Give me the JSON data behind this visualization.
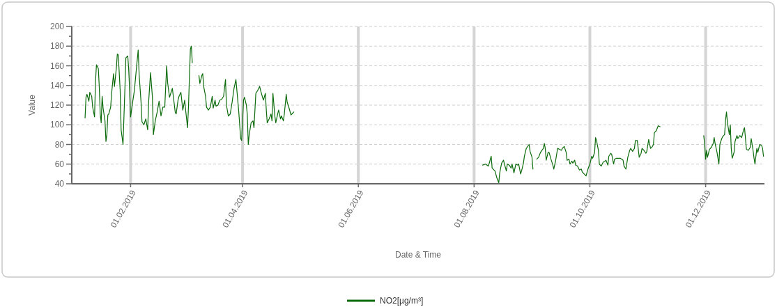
{
  "chart_data": {
    "type": "line",
    "xlabel": "Date & Time",
    "ylabel": "Value",
    "xlim": [
      "2019-01-01",
      "2020-01-01"
    ],
    "xticks": [
      {
        "value": "2019-02-01",
        "label": "01.02.2019"
      },
      {
        "value": "2019-04-01",
        "label": "01.04.2019"
      },
      {
        "value": "2019-06-01",
        "label": "01.06.2019"
      },
      {
        "value": "2019-08-01",
        "label": "01.08.2019"
      },
      {
        "value": "2019-10-01",
        "label": "01.10.2019"
      },
      {
        "value": "2019-12-01",
        "label": "01.12.2019"
      }
    ],
    "ylim": [
      40,
      200
    ],
    "yticks": [
      40,
      {
        "value": 50,
        "label": null
      },
      60,
      {
        "value": 70,
        "label": null
      },
      80,
      {
        "value": 90,
        "label": null
      },
      100,
      {
        "value": 110,
        "label": null
      },
      120,
      {
        "value": 130,
        "label": null
      },
      140,
      {
        "value": 150,
        "label": null
      },
      160,
      {
        "value": 170,
        "label": null
      },
      180,
      {
        "value": 190,
        "label": null
      },
      200
    ],
    "grid": true,
    "legend": "bottom",
    "marker": "none",
    "line_style": "solid",
    "x": [
      "2019-01-08",
      "2019-01-08T12:00",
      "2019-01-09",
      "2019-01-10",
      "2019-01-10T12:00",
      "2019-01-11T12:00",
      "2019-01-12",
      "2019-01-13",
      "2019-01-13T12:00",
      "2019-01-14",
      "2019-01-15",
      "2019-01-15T12:00",
      "2019-01-16",
      "2019-01-16T12:00",
      "2019-01-17",
      "2019-01-17T12:00",
      "2019-01-18T12:00",
      "2019-01-19",
      "2019-01-19T12:00",
      "2019-01-20",
      "2019-01-20T12:00",
      "2019-01-21T12:00",
      "2019-01-22",
      "2019-01-23",
      "2019-01-23T12:00",
      "2019-01-24T12:00",
      "2019-01-25",
      "2019-01-25T12:00",
      "2019-01-26T12:00",
      "2019-01-27",
      "2019-01-28",
      "2019-01-29",
      "2019-01-29T12:00",
      "2019-01-30T12:00",
      "2019-01-31",
      "2019-01-31T12:00",
      "2019-02-01",
      "2019-02-02",
      "2019-02-03",
      "2019-02-04",
      "2019-02-05",
      "2019-02-05T12:00",
      "2019-02-06T12:00",
      "2019-02-07",
      "2019-02-08",
      "2019-02-09",
      "2019-02-10",
      "2019-02-10T12:00",
      "2019-02-11T12:00",
      "2019-02-12T12:00",
      "2019-02-13",
      "2019-02-14",
      "2019-02-15",
      "2019-02-16",
      "2019-02-17",
      "2019-02-18",
      "2019-02-19",
      "2019-02-20",
      "2019-02-20T12:00",
      "2019-02-21T12:00",
      "2019-02-22",
      "2019-02-23",
      "2019-02-23T12:00",
      "2019-02-24T12:00",
      "2019-02-25",
      "2019-02-26",
      "2019-02-26T12:00",
      "2019-02-27T12:00",
      "2019-02-28T12:00",
      "2019-03-01T12:00",
      "2019-03-02",
      "2019-03-03",
      "2019-03-03T12:00",
      "2019-03-04",
      "2019-03-04T12:00",
      "2019-03-05",
      "2019-03-05T12:00",
      "2019-03-07",
      "2019-03-09",
      "2019-03-09T12:00",
      "2019-03-10T12:00",
      "2019-03-11",
      "2019-03-11T12:00",
      "2019-03-12T12:00",
      "2019-03-13",
      "2019-03-14",
      "2019-03-15",
      "2019-03-16",
      "2019-03-16T12:00",
      "2019-03-17T12:00",
      "2019-03-18",
      "2019-03-19",
      "2019-03-20",
      "2019-03-21",
      "2019-03-22",
      "2019-03-23",
      "2019-03-23T12:00",
      "2019-03-24T12:00",
      "2019-03-25T12:00",
      "2019-03-26T12:00",
      "2019-03-27T12:00",
      "2019-03-28T12:00",
      "2019-03-29",
      "2019-03-30",
      "2019-03-31",
      "2019-03-31T12:00",
      "2019-04-01T12:00",
      "2019-04-02",
      "2019-04-03",
      "2019-04-03T12:00",
      "2019-04-04",
      "2019-04-04T12:00",
      "2019-04-05T12:00",
      "2019-04-06T12:00",
      "2019-04-07",
      "2019-04-08",
      "2019-04-09",
      "2019-04-10",
      "2019-04-10T12:00",
      "2019-04-11T12:00",
      "2019-04-12",
      "2019-04-13",
      "2019-04-13T12:00",
      "2019-04-14",
      "2019-04-15",
      "2019-04-16",
      "2019-04-16T12:00",
      "2019-04-17",
      "2019-04-18",
      "2019-04-18T12:00",
      "2019-04-19T12:00",
      "2019-04-20",
      "2019-04-21",
      "2019-04-21T12:00",
      "2019-04-22T12:00",
      "2019-04-23",
      "2019-04-24",
      "2019-04-24T12:00",
      "2019-04-25T12:00",
      "2019-04-26T12:00",
      "2019-04-27",
      "2019-04-28",
      "2019-06-01",
      "2019-08-05T12:00",
      "2019-08-07",
      "2019-08-08T12:00",
      "2019-08-09",
      "2019-08-10",
      "2019-08-10T12:00",
      "2019-08-12",
      "2019-08-13",
      "2019-08-14",
      "2019-08-14T12:00",
      "2019-08-15T12:00",
      "2019-08-16T12:00",
      "2019-08-17",
      "2019-08-18",
      "2019-08-18T12:00",
      "2019-08-19T12:00",
      "2019-08-20T12:00",
      "2019-08-21",
      "2019-08-22",
      "2019-08-23",
      "2019-08-24",
      "2019-08-24T12:00",
      "2019-08-25T12:00",
      "2019-08-26",
      "2019-08-27",
      "2019-08-27T12:00",
      "2019-08-28T12:00",
      "2019-08-30",
      "2019-08-30T12:00",
      "2019-08-31T12:00",
      "2019-09-01",
      "2019-09-02",
      "2019-09-03",
      "2019-09-04",
      "2019-09-05",
      "2019-09-06T12:00",
      "2019-09-07",
      "2019-09-07T12:00",
      "2019-09-08",
      "2019-09-09",
      "2019-09-09T12:00",
      "2019-09-10T12:00",
      "2019-09-11T12:00",
      "2019-09-12",
      "2019-09-13",
      "2019-09-14",
      "2019-09-15",
      "2019-09-16",
      "2019-09-16T12:00",
      "2019-09-17T12:00",
      "2019-09-18T12:00",
      "2019-09-19",
      "2019-09-20",
      "2019-09-20T12:00",
      "2019-09-21T12:00",
      "2019-09-22",
      "2019-09-23",
      "2019-09-23T12:00",
      "2019-09-24T12:00",
      "2019-09-25T12:00",
      "2019-09-26T12:00",
      "2019-09-27",
      "2019-09-28",
      "2019-09-29",
      "2019-09-30",
      "2019-10-01",
      "2019-10-02",
      "2019-10-02T12:00",
      "2019-10-03T12:00",
      "2019-10-04",
      "2019-10-04T12:00",
      "2019-10-05T12:00",
      "2019-10-06",
      "2019-10-07",
      "2019-10-08",
      "2019-10-09",
      "2019-10-09T12:00",
      "2019-10-10T12:00",
      "2019-10-11",
      "2019-10-12",
      "2019-10-12T12:00",
      "2019-10-13T12:00",
      "2019-10-14",
      "2019-10-15",
      "2019-10-16",
      "2019-10-17",
      "2019-10-18T12:00",
      "2019-10-19",
      "2019-10-20",
      "2019-10-21",
      "2019-10-22",
      "2019-10-22T12:00",
      "2019-10-23T12:00",
      "2019-10-24T12:00",
      "2019-10-25",
      "2019-10-26",
      "2019-10-27",
      "2019-10-28",
      "2019-10-28T12:00",
      "2019-10-29T12:00",
      "2019-10-30T12:00",
      "2019-10-31",
      "2019-11-01",
      "2019-11-01T12:00",
      "2019-11-02",
      "2019-11-03",
      "2019-11-03T12:00",
      "2019-11-04",
      "2019-11-05",
      "2019-11-06",
      "2019-11-07",
      "2019-11-20",
      "2019-11-30",
      "2019-11-30T12:00",
      "2019-12-01",
      "2019-12-01T12:00",
      "2019-12-02",
      "2019-12-03",
      "2019-12-04",
      "2019-12-05",
      "2019-12-05T12:00",
      "2019-12-06",
      "2019-12-07",
      "2019-12-08",
      "2019-12-08T12:00",
      "2019-12-09T12:00",
      "2019-12-10",
      "2019-12-11",
      "2019-12-11T12:00",
      "2019-12-12",
      "2019-12-12T12:00",
      "2019-12-13T12:00",
      "2019-12-14",
      "2019-12-14T12:00",
      "2019-12-15",
      "2019-12-16",
      "2019-12-16T12:00",
      "2019-12-17T12:00",
      "2019-12-18",
      "2019-12-19",
      "2019-12-20",
      "2019-12-21",
      "2019-12-21T12:00",
      "2019-12-22T12:00",
      "2019-12-23T12:00",
      "2019-12-24T12:00",
      "2019-12-25",
      "2019-12-26",
      "2019-12-26T12:00",
      "2019-12-27",
      "2019-12-28",
      "2019-12-28T12:00",
      "2019-12-29T12:00",
      "2019-12-30T12:00",
      "2019-12-31",
      "2019-12-31T12:00"
    ],
    "series": [
      {
        "name": "NO2[µg/m³]",
        "color": "#0b6b0b",
        "values": [
          107,
          128,
          131,
          124,
          133,
          129,
          118,
          108,
          144,
          161,
          157,
          138,
          111,
          102,
          129,
          117,
          104,
          83,
          90,
          110,
          111,
          118,
          132,
          152,
          139,
          158,
          172,
          171,
          135,
          95,
          80,
          137,
          168,
          170,
          156,
          135,
          108,
          122,
          135,
          156,
          176,
          151,
          123,
          103,
          100,
          106,
          95,
          123,
          153,
          128,
          90,
          104,
          113,
          124,
          109,
          118,
          118,
          160,
          143,
          128,
          131,
          137,
          129,
          113,
          111,
          125,
          129,
          133,
          115,
          125,
          115,
          97,
          118,
          149,
          177,
          180,
          163,
          null,
          150,
          142,
          150,
          152,
          139,
          129,
          118,
          115,
          118,
          129,
          117,
          125,
          119,
          120,
          125,
          126,
          129,
          146,
          120,
          109,
          111,
          123,
          137,
          146,
          135,
          113,
          86,
          84,
          125,
          128,
          120,
          110,
          80,
          90,
          102,
          104,
          97,
          132,
          135,
          139,
          135,
          128,
          125,
          132,
          115,
          102,
          106,
          111,
          104,
          132,
          109,
          102,
          111,
          115,
          106,
          109,
          104,
          111,
          131,
          123,
          117,
          110,
          111,
          113,
          null,
          59,
          60,
          58,
          61,
          68,
          56,
          53,
          46,
          41,
          51,
          61,
          64,
          60,
          53,
          60,
          59,
          56,
          60,
          51,
          60,
          59,
          60,
          50,
          53,
          61,
          68,
          76,
          80,
          73,
          67,
          55,
          null,
          65,
          67,
          72,
          76,
          81,
          76,
          64,
          72,
          72,
          65,
          59,
          55,
          64,
          76,
          75,
          74,
          76,
          78,
          72,
          64,
          65,
          60,
          63,
          61,
          64,
          59,
          58,
          54,
          55,
          52,
          50,
          48,
          55,
          60,
          68,
          66,
          72,
          87,
          84,
          74,
          60,
          58,
          62,
          63,
          64,
          59,
          68,
          71,
          70,
          60,
          65,
          66,
          66,
          66,
          64,
          58,
          55,
          67,
          74,
          76,
          73,
          76,
          84,
          84,
          67,
          71,
          76,
          74,
          71,
          73,
          85,
          80,
          76,
          78,
          80,
          92,
          94,
          99,
          98,
          null,
          89,
          80,
          65,
          74,
          67,
          75,
          77,
          81,
          87,
          81,
          72,
          60,
          80,
          86,
          88,
          90,
          105,
          113,
          102,
          90,
          100,
          76,
          66,
          72,
          83,
          89,
          86,
          89,
          87,
          95,
          97,
          75,
          74,
          77,
          86,
          74,
          66,
          60,
          76,
          72,
          80,
          79,
          76,
          68
        ]
      }
    ]
  }
}
